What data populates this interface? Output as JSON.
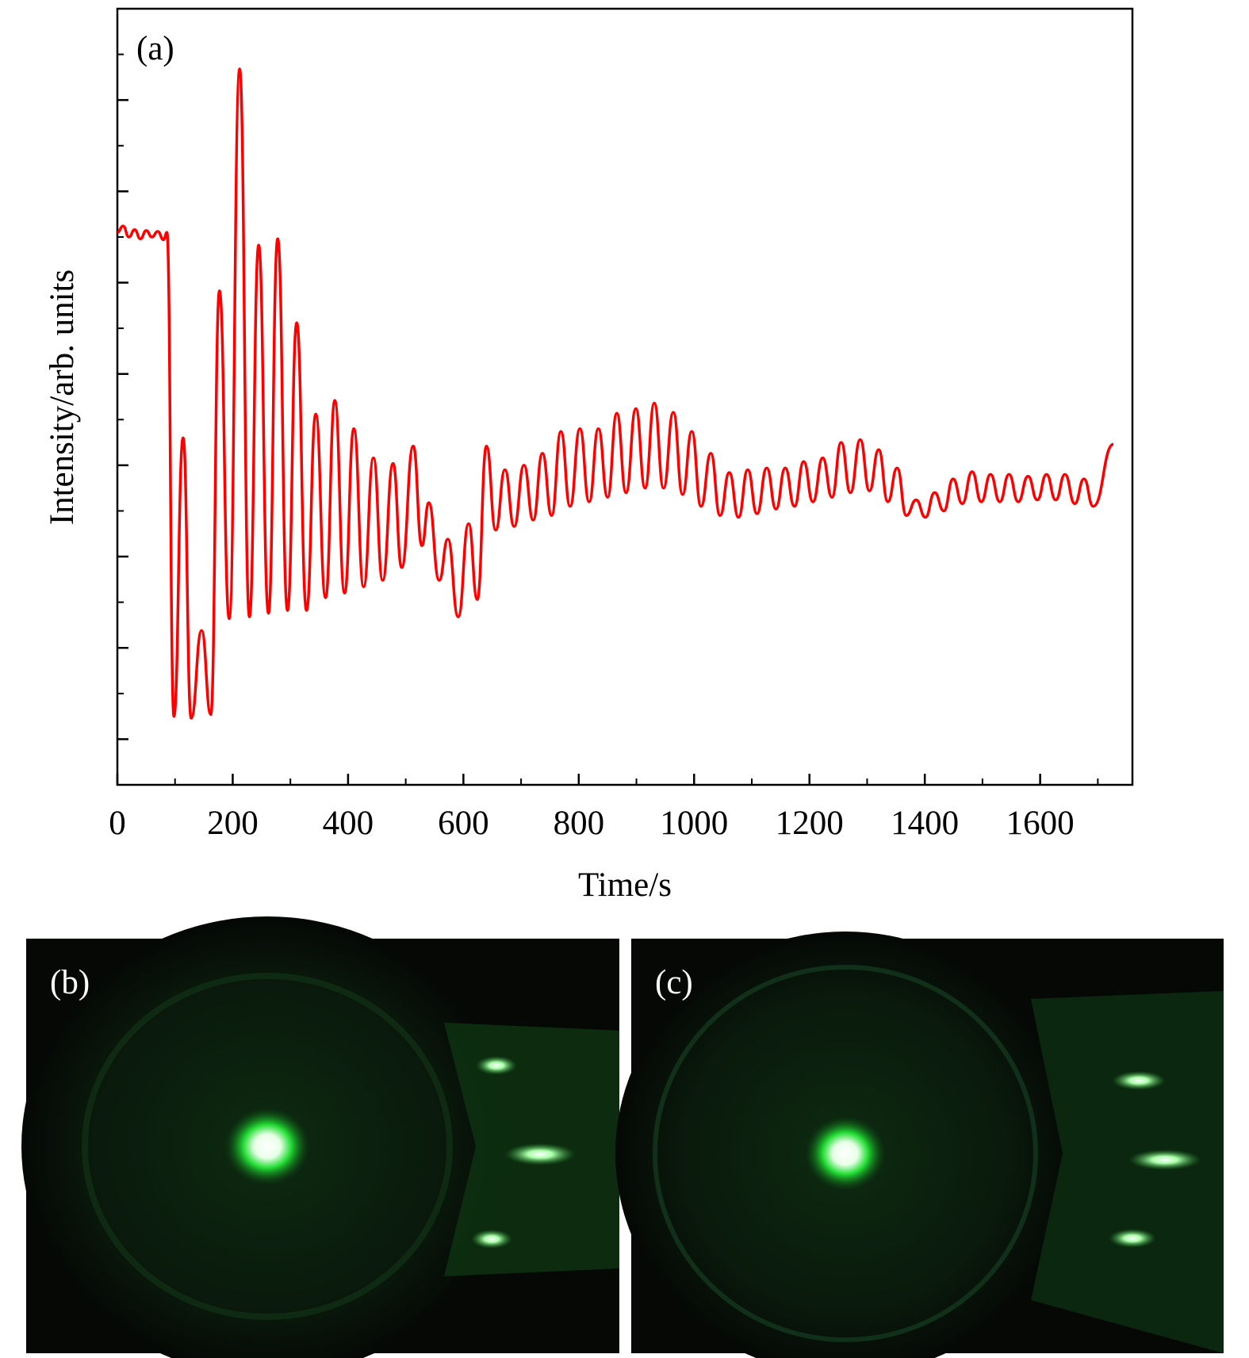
{
  "chart_data": {
    "type": "line",
    "annotation": "(a)",
    "xlabel": "Time/s",
    "ylabel": "Intensity/arb. units",
    "xlim": [
      0,
      1760
    ],
    "ylim": [
      0.5,
      9
    ],
    "xticks": [
      0,
      200,
      400,
      600,
      800,
      1000,
      1200,
      1400,
      1600
    ],
    "xminorticks": [
      100,
      300,
      500,
      700,
      900,
      1100,
      1300,
      1500,
      1700
    ],
    "yticks": [
      1,
      2,
      3,
      4,
      5,
      6,
      7,
      8
    ],
    "yminorticks": [
      1.5,
      2.5,
      3.5,
      4.5,
      5.5,
      6.5,
      7.5,
      8.5
    ],
    "color": "#ff0000",
    "x": [
      0,
      10,
      20,
      30,
      40,
      50,
      60,
      70,
      80,
      86,
      98,
      114,
      128,
      146,
      162,
      177,
      194,
      212,
      229,
      245,
      262,
      278,
      295,
      311,
      328,
      344,
      361,
      377,
      394,
      410,
      427,
      444,
      460,
      478,
      493,
      513,
      528,
      540,
      558,
      573,
      591,
      609,
      624,
      640,
      656,
      672,
      688,
      705,
      721,
      737,
      753,
      769,
      785,
      802,
      818,
      834,
      850,
      866,
      882,
      899,
      915,
      931,
      947,
      964,
      980,
      996,
      1012,
      1029,
      1045,
      1061,
      1077,
      1093,
      1109,
      1126,
      1142,
      1158,
      1174,
      1190,
      1206,
      1223,
      1239,
      1255,
      1271,
      1288,
      1304,
      1320,
      1336,
      1352,
      1368,
      1385,
      1401,
      1417,
      1433,
      1449,
      1465,
      1482,
      1498,
      1514,
      1530,
      1546,
      1562,
      1579,
      1595,
      1611,
      1627,
      1643,
      1660,
      1676,
      1692,
      1727
    ],
    "values": [
      6.55,
      6.62,
      6.5,
      6.58,
      6.48,
      6.57,
      6.5,
      6.56,
      6.47,
      6.55,
      1.25,
      4.3,
      1.23,
      2.19,
      1.27,
      5.91,
      2.32,
      8.34,
      2.34,
      6.41,
      2.38,
      6.48,
      2.41,
      5.56,
      2.41,
      4.56,
      2.55,
      4.71,
      2.6,
      4.4,
      2.67,
      4.08,
      2.74,
      4.02,
      2.88,
      4.21,
      3.12,
      3.59,
      2.74,
      3.19,
      2.34,
      3.36,
      2.53,
      4.21,
      3.29,
      3.95,
      3.33,
      4.0,
      3.4,
      4.13,
      3.45,
      4.37,
      3.55,
      4.4,
      3.6,
      4.4,
      3.65,
      4.57,
      3.7,
      4.62,
      3.75,
      4.68,
      3.75,
      4.58,
      3.68,
      4.37,
      3.55,
      4.13,
      3.45,
      3.92,
      3.43,
      3.95,
      3.47,
      3.97,
      3.52,
      3.97,
      3.55,
      4.04,
      3.6,
      4.08,
      3.65,
      4.25,
      3.7,
      4.28,
      3.72,
      4.17,
      3.6,
      3.97,
      3.45,
      3.62,
      3.43,
      3.7,
      3.5,
      3.85,
      3.58,
      3.93,
      3.6,
      3.9,
      3.6,
      3.9,
      3.6,
      3.88,
      3.62,
      3.9,
      3.62,
      3.9,
      3.58,
      3.85,
      3.55,
      4.23
    ]
  },
  "images": [
    {
      "label": "(b)"
    },
    {
      "label": "(c)"
    }
  ]
}
